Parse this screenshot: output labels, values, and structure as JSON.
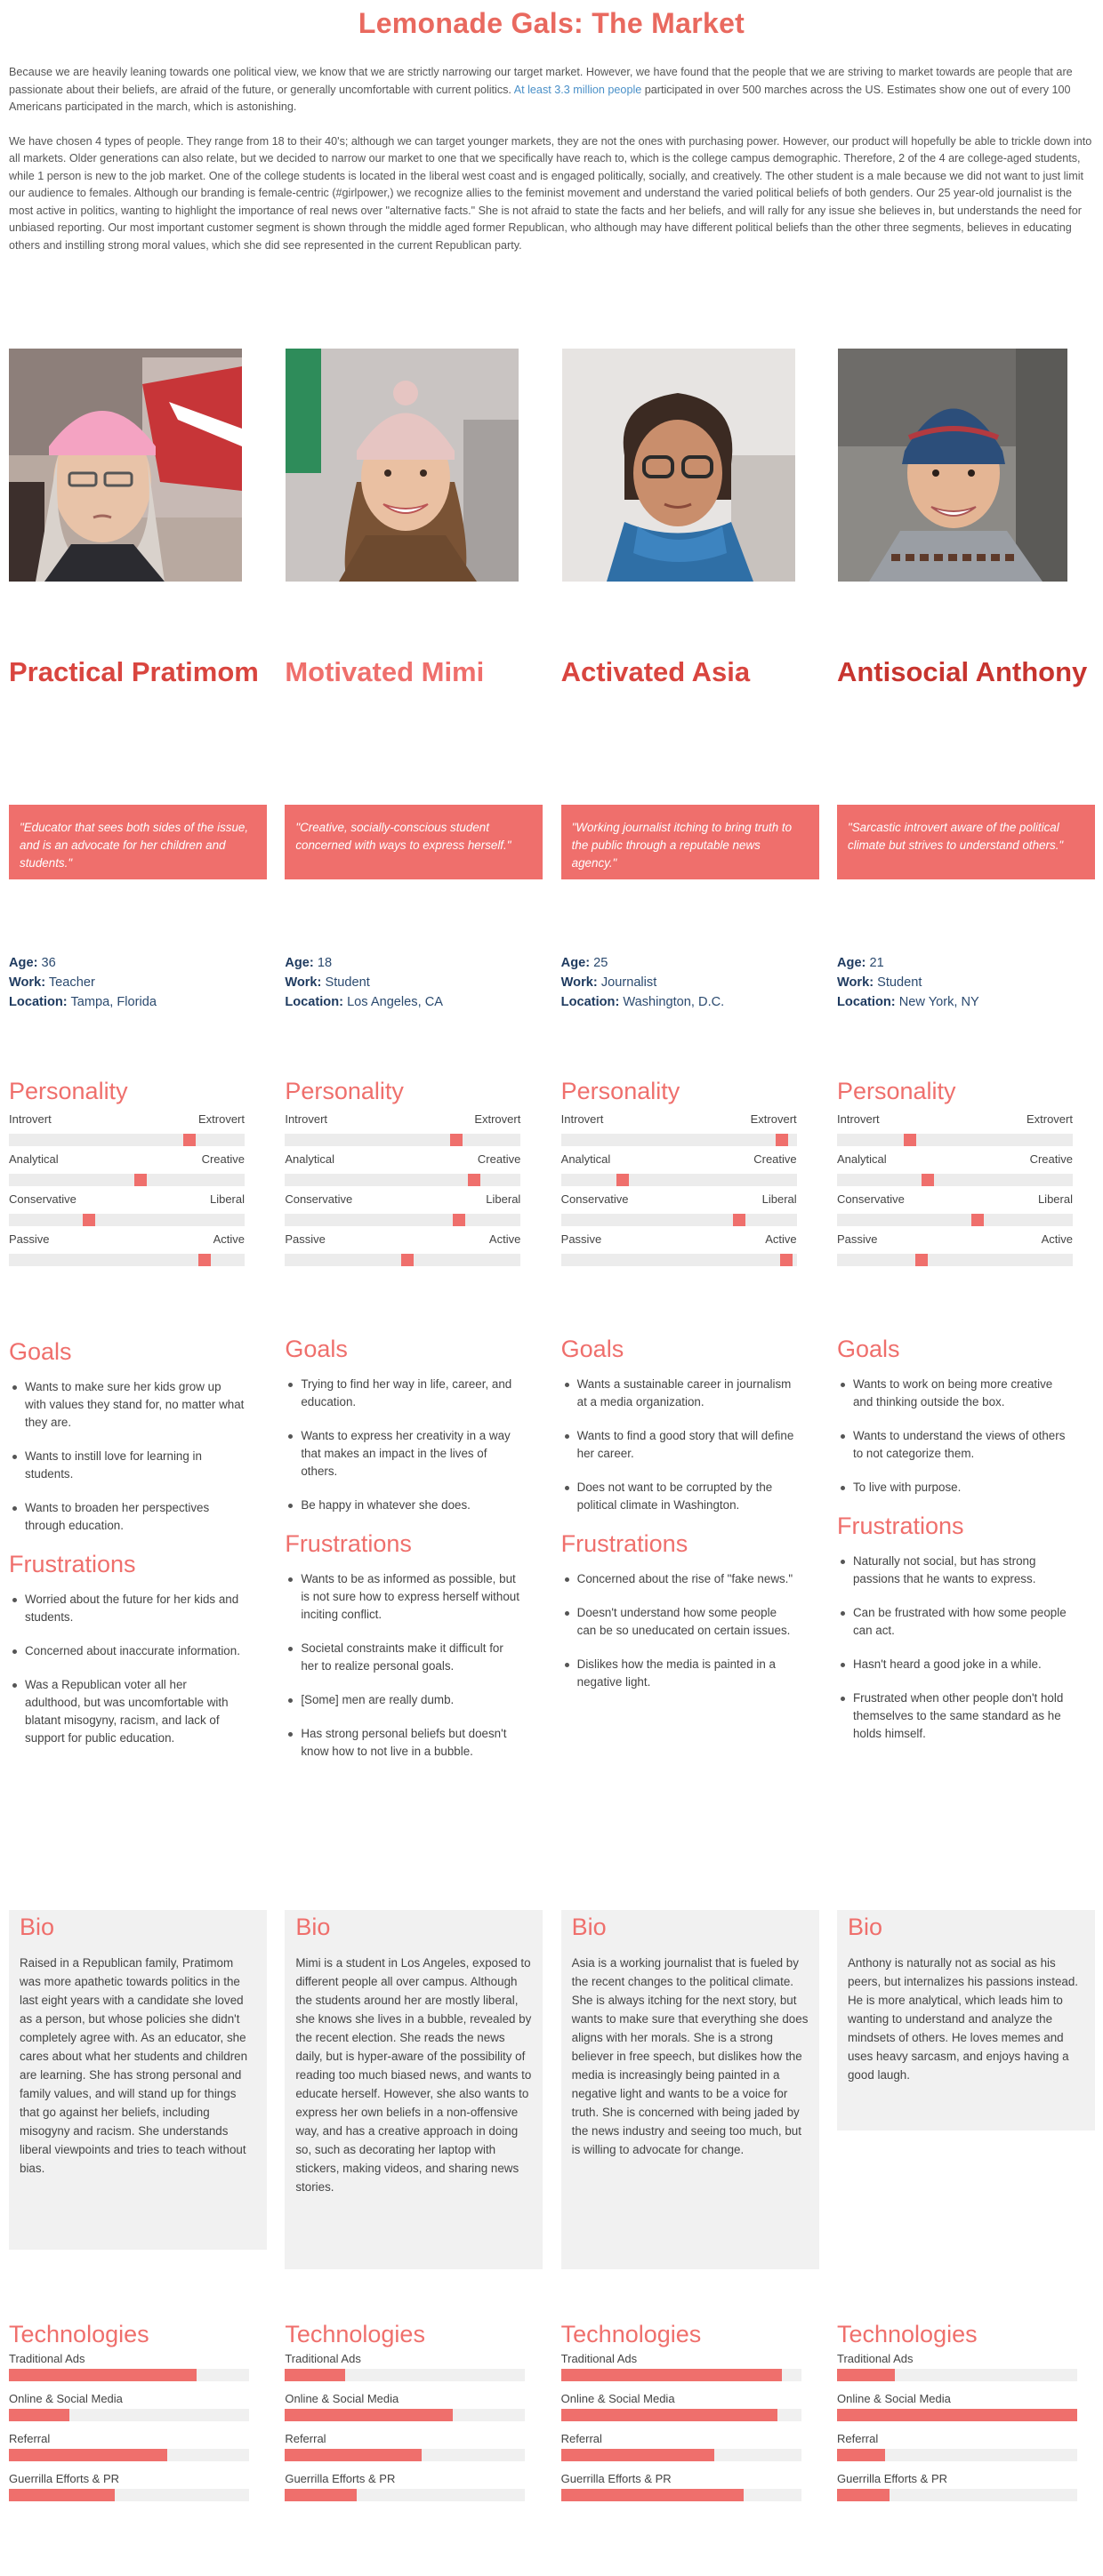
{
  "page": {
    "title": "Lemonade Gals: The Market",
    "intro_p1_text": "Because we are heavily leaning towards one political view, we know that we are strictly narrowing our target market. However, we have found that the people that we are striving to market towards are people that are passionate about their beliefs, are afraid of the future, or generally uncomfortable with current politics. ",
    "intro_p1_link": "At least 3.3 million people",
    "intro_p1_tail": " participated in over 500 marches across the US. Estimates show one out of every 100 Americans participated in the march, which is astonishing.",
    "intro_p2": "We have chosen 4 types of people. They range from 18 to their 40's; although we can target younger markets, they are not the ones with purchasing power. However, our product will hopefully be able to trickle down into all markets. Older generations can also relate, but we decided to narrow our market to one that we specifically have reach to, which is the college campus demographic. Therefore, 2 of the 4 are college-aged students, while 1 person is new to the job market. One of the college students is located in the liberal west coast and is engaged politically, socially, and creatively. The other student is a male because we did not want to just limit our audience to females. Although our branding is female-centric (#girlpower,) we recognize allies to the feminist movement and understand the varied political beliefs of both genders. Our 25 year-old journalist is the most active in politics, wanting to highlight the importance of real news over \"alternative facts.\" She is not afraid to state the facts and her beliefs, and will rally for any issue she believes in, but understands the need for unbiased reporting. Our most important customer segment is shown through the middle aged former Republican, who although may have different political beliefs than the other three segments, believes in educating others and instilling strong moral values, which she did see represented in the current Republican party."
  },
  "labels": {
    "age": "Age:",
    "work": "Work:",
    "location": "Location:",
    "personality": "Personality",
    "goals": "Goals",
    "frustrations": "Frustrations",
    "bio": "Bio",
    "technologies": "Technologies"
  },
  "colors": {
    "accent": "#ef6f6c",
    "title": "#e9695f",
    "name_dark": "#c7342e",
    "link": "#4a90c8"
  },
  "personas": [
    {
      "name": "Practical Pratimom",
      "name_color": "#d9453f",
      "photo_icon": "woman-pink-hat-photo",
      "quote": "\"Educator that sees both sides of the issue, and is an advocate for her children and students.\"",
      "age": "36",
      "work": "Teacher",
      "location": "Tampa, Florida",
      "personality": [
        {
          "left": "Introvert",
          "right": "Extrovert",
          "level": 0.78
        },
        {
          "left": "Analytical",
          "right": "Creative",
          "level": 0.56
        },
        {
          "left": "Conservative",
          "right": "Liberal",
          "level": 0.33
        },
        {
          "left": "Passive",
          "right": "Active",
          "level": 0.85
        }
      ],
      "goals": [
        "Wants to make sure her kids grow up with values they stand for, no matter what they are.",
        "Wants to instill love for learning in students.",
        "Wants to broaden her perspectives through education."
      ],
      "frustrations": [
        "Worried about the future for her kids and students.",
        "Concerned about inaccurate information.",
        "Was a Republican voter all her adulthood, but was uncomfortable with blatant misogyny, racism, and lack of support for public education."
      ],
      "bio": "Raised in a Republican family, Pratimom was more apathetic towards politics in the last eight years with a candidate she loved as a person, but whose policies she didn't completely agree with. As an educator, she cares about what her students and children are learning. She has strong personal and family values, and will stand up for things that go against her beliefs, including misogyny and racism. She understands liberal viewpoints and tries to teach without bias.",
      "technologies": [
        {
          "label": "Traditional Ads",
          "pct": 0.78
        },
        {
          "label": "Online & Social Media",
          "pct": 0.25
        },
        {
          "label": "Referral",
          "pct": 0.66
        },
        {
          "label": "Guerrilla Efforts & PR",
          "pct": 0.44
        }
      ]
    },
    {
      "name": "Motivated Mimi",
      "name_color": "#ef6f6c",
      "photo_icon": "woman-beanie-smiling-photo",
      "quote": "\"Creative, socially-conscious student concerned with ways to express herself.\"",
      "age": "18",
      "work": "Student",
      "location": "Los Angeles, CA",
      "personality": [
        {
          "left": "Introvert",
          "right": "Extrovert",
          "level": 0.74
        },
        {
          "left": "Analytical",
          "right": "Creative",
          "level": 0.82
        },
        {
          "left": "Conservative",
          "right": "Liberal",
          "level": 0.75
        },
        {
          "left": "Passive",
          "right": "Active",
          "level": 0.52
        }
      ],
      "goals": [
        "Trying to find her way in life, career, and education.",
        "Wants to express her creativity in a way that makes an impact in the lives of others.",
        "Be happy in whatever she does."
      ],
      "frustrations": [
        "Wants to be as informed as possible, but is not sure how to express herself without inciting conflict.",
        "Societal constraints make it difficult for her to realize personal goals.",
        "[Some] men are really dumb.",
        "Has strong personal beliefs but doesn't know how to not live in a bubble."
      ],
      "bio": "Mimi is a student in Los Angeles, exposed to different people all over campus. Although the students around her are mostly liberal, she knows she lives in a bubble, revealed by the recent election. She reads the news daily, but is hyper-aware of the possibility of reading too much biased news, and wants to educate herself. However, she also wants to express her own beliefs in a non-offensive way, and has a creative approach in doing so, such as decorating her laptop with stickers, making videos, and sharing news stories.",
      "technologies": [
        {
          "label": "Traditional Ads",
          "pct": 0.25
        },
        {
          "label": "Online & Social Media",
          "pct": 0.7
        },
        {
          "label": "Referral",
          "pct": 0.57
        },
        {
          "label": "Guerrilla Efforts & PR",
          "pct": 0.3
        }
      ]
    },
    {
      "name": "Activated Asia",
      "name_color": "#d9453f",
      "photo_icon": "woman-glasses-scarf-photo",
      "quote": "\"Working journalist itching to bring truth to the public through a reputable news agency.\"",
      "age": "25",
      "work": "Journalist",
      "location": "Washington, D.C.",
      "personality": [
        {
          "left": "Introvert",
          "right": "Extrovert",
          "level": 0.96
        },
        {
          "left": "Analytical",
          "right": "Creative",
          "level": 0.25
        },
        {
          "left": "Conservative",
          "right": "Liberal",
          "level": 0.77
        },
        {
          "left": "Passive",
          "right": "Active",
          "level": 0.98
        }
      ],
      "goals": [
        "Wants a sustainable career in journalism at a media organization.",
        "Wants to find a good story that will define her career.",
        "Does not want to be corrupted by the political climate in Washington."
      ],
      "frustrations": [
        "Concerned about the rise of \"fake news.\"",
        "Doesn't understand how some people can be so uneducated on certain issues.",
        "Dislikes how the media is painted in a negative light."
      ],
      "bio": "Asia is a working journalist that is fueled by the recent changes to the political climate. She is always itching for the next story, but wants to make sure that everything she does aligns with her morals. She is a strong believer in free speech, but dislikes how the media is increasingly being painted in a negative light and wants to be a voice for truth. She is concerned with being jaded by the news industry and seeing too much, but is willing to advocate for change.",
      "technologies": [
        {
          "label": "Traditional Ads",
          "pct": 0.92
        },
        {
          "label": "Online & Social Media",
          "pct": 0.9
        },
        {
          "label": "Referral",
          "pct": 0.64
        },
        {
          "label": "Guerrilla Efforts & PR",
          "pct": 0.76
        }
      ]
    },
    {
      "name": "Antisocial Anthony",
      "name_color": "#c7342e",
      "photo_icon": "man-beanie-smiling-photo",
      "quote": "\"Sarcastic introvert aware of the political climate but strives to understand others.\"",
      "age": "21",
      "work": "Student",
      "location": "New York, NY",
      "personality": [
        {
          "left": "Introvert",
          "right": "Extrovert",
          "level": 0.3
        },
        {
          "left": "Analytical",
          "right": "Creative",
          "level": 0.38
        },
        {
          "left": "Conservative",
          "right": "Liberal",
          "level": 0.6
        },
        {
          "left": "Passive",
          "right": "Active",
          "level": 0.35
        }
      ],
      "goals": [
        "Wants to work on being more creative and thinking outside the box.",
        "Wants to understand the views of others to not categorize them.",
        "To live with purpose."
      ],
      "frustrations": [
        "Naturally not social, but has strong passions that he wants to express.",
        "Can be frustrated with how some people can act.",
        "Hasn't heard a good joke in a while.",
        "Frustrated when other people don't hold themselves to the same standard as he holds himself."
      ],
      "bio": "Anthony is naturally not as social as his peers, but internalizes his passions instead. He is more analytical, which leads him to wanting to understand and analyze the mindsets of others. He loves memes and uses heavy sarcasm, and enjoys having a good laugh.",
      "technologies": [
        {
          "label": "Traditional Ads",
          "pct": 0.24
        },
        {
          "label": "Online & Social Media",
          "pct": 1.0
        },
        {
          "label": "Referral",
          "pct": 0.2
        },
        {
          "label": "Guerrilla Efforts & PR",
          "pct": 0.22
        }
      ]
    }
  ]
}
